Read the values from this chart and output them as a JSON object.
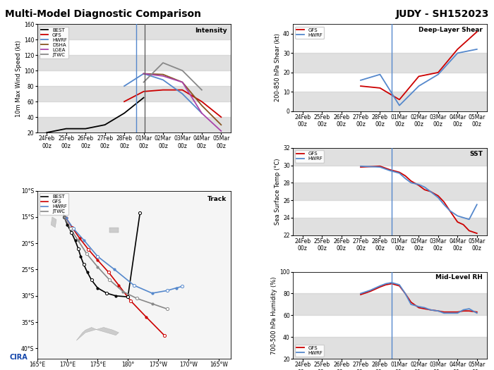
{
  "title_left": "Multi-Model Diagnostic Comparison",
  "title_right": "JUDY - SH152023",
  "bg_color": "#ffffff",
  "gray_band_color": "#cccccc",
  "x_dates": [
    "24Feb\n00z",
    "25Feb\n00z",
    "26Feb\n00z",
    "27Feb\n00z",
    "28Feb\n00z",
    "01Mar\n00z",
    "02Mar\n00z",
    "03Mar\n00z",
    "04Mar\n00z",
    "05Mar\n00z"
  ],
  "x_ticks": [
    0,
    1,
    2,
    3,
    4,
    5,
    6,
    7,
    8,
    9
  ],
  "vline_blue": 4.6,
  "vline_gray": 5.05,
  "intensity": {
    "ylabel": "10m Max Wind Speed (kt)",
    "ylim": [
      20,
      160
    ],
    "yticks": [
      20,
      40,
      60,
      80,
      100,
      120,
      140,
      160
    ],
    "label": "Intensity",
    "BEST": [
      20,
      25,
      25,
      30,
      45,
      65,
      null,
      null,
      null,
      null
    ],
    "GFS": [
      null,
      null,
      null,
      null,
      60,
      73,
      75,
      75,
      60,
      40
    ],
    "HWRF": [
      null,
      null,
      null,
      null,
      80,
      96,
      88,
      70,
      45,
      null
    ],
    "DSHA": [
      null,
      null,
      null,
      null,
      null,
      96,
      95,
      85,
      55,
      30
    ],
    "LGEA": [
      null,
      null,
      null,
      null,
      null,
      96,
      93,
      85,
      45,
      22
    ],
    "JTWC": [
      null,
      null,
      null,
      null,
      null,
      85,
      110,
      100,
      75,
      null
    ],
    "colors": {
      "BEST": "#000000",
      "GFS": "#cc0000",
      "HWRF": "#5588cc",
      "DSHA": "#885522",
      "LGEA": "#aa44aa",
      "JTWC": "#888888"
    }
  },
  "shear": {
    "ylabel": "200-850 hPa Shear (kt)",
    "ylim": [
      0,
      45
    ],
    "yticks": [
      0,
      10,
      20,
      30,
      40
    ],
    "label": "Deep-Layer Shear",
    "GFS": [
      null,
      null,
      null,
      13,
      12,
      6,
      18,
      20,
      32,
      41
    ],
    "HWRF": [
      null,
      null,
      null,
      16,
      19,
      3,
      13,
      19,
      30,
      32
    ],
    "colors": {
      "GFS": "#cc0000",
      "HWRF": "#5588cc"
    }
  },
  "sst": {
    "ylabel": "Sea Surface Temp (°C)",
    "ylim": [
      22,
      32
    ],
    "yticks": [
      22,
      24,
      26,
      28,
      30,
      32
    ],
    "label": "SST",
    "GFS_x": [
      2,
      3,
      4,
      4.5,
      5,
      5.3,
      5.6,
      6,
      6.3,
      6.6,
      7,
      7.3,
      7.6,
      8,
      8.3,
      8.6,
      9
    ],
    "GFS_y": [
      null,
      29.8,
      29.9,
      29.5,
      29.2,
      28.8,
      28.2,
      27.7,
      27.2,
      27.0,
      26.5,
      25.8,
      24.8,
      23.5,
      23.2,
      22.5,
      22.2
    ],
    "HWRF_x": [
      2,
      3,
      4,
      4.5,
      5,
      5.3,
      5.6,
      6,
      6.3,
      6.6,
      7,
      7.3,
      7.6,
      8,
      8.3,
      8.6,
      9
    ],
    "HWRF_y": [
      null,
      29.9,
      29.8,
      29.4,
      29.1,
      28.5,
      28.0,
      27.8,
      27.5,
      27.0,
      26.3,
      25.5,
      24.8,
      24.2,
      24.0,
      23.8,
      25.5
    ],
    "colors": {
      "GFS": "#cc0000",
      "HWRF": "#5588cc"
    }
  },
  "rh": {
    "ylabel": "700-500 hPa Humidity (%)",
    "ylim": [
      20,
      100
    ],
    "yticks": [
      20,
      40,
      60,
      80,
      100
    ],
    "label": "Mid-Level RH",
    "GFS_x": [
      2,
      3,
      3.5,
      4,
      4.3,
      4.6,
      5,
      5.3,
      5.6,
      6,
      6.3,
      6.6,
      7,
      7.3,
      7.6,
      8,
      8.3,
      8.6,
      9
    ],
    "GFS_y": [
      null,
      79,
      82,
      86,
      88,
      89,
      87,
      80,
      72,
      67,
      66,
      65,
      64,
      63,
      63,
      63,
      64,
      64,
      63
    ],
    "HWRF_x": [
      2,
      3,
      3.5,
      4,
      4.3,
      4.6,
      5,
      5.3,
      5.6,
      6,
      6.3,
      6.6,
      7,
      7.3,
      7.6,
      8,
      8.3,
      8.6,
      9
    ],
    "HWRF_y": [
      null,
      80,
      83,
      87,
      89,
      90,
      88,
      80,
      70,
      68,
      67,
      65,
      64,
      62,
      62,
      62,
      65,
      66,
      62
    ],
    "colors": {
      "GFS": "#cc0000",
      "HWRF": "#5588cc"
    }
  },
  "track": {
    "label": "Track",
    "xlim": [
      165,
      197
    ],
    "ylim": [
      -42,
      -10
    ],
    "xticks": [
      165,
      170,
      175,
      180,
      185,
      190,
      195
    ],
    "xlabels": [
      "165°E",
      "170°E",
      "175°E",
      "180°",
      "175°W",
      "170°W",
      "165°W"
    ],
    "yticks": [
      -10,
      -15,
      -20,
      -25,
      -30,
      -35,
      -40
    ],
    "ylabels": [
      "10°S",
      "15°S",
      "20°S",
      "25°S",
      "30°S",
      "35°S",
      "40°S"
    ],
    "BEST_lon": [
      168.5,
      169.0,
      169.3,
      169.5,
      170.0,
      170.7,
      171.3,
      171.8,
      172.2,
      172.7,
      173.3,
      174.0,
      175.0,
      176.5,
      178.0,
      180.0,
      182.0
    ],
    "BEST_lat": [
      -12.5,
      -13.5,
      -14.0,
      -15.0,
      -16.5,
      -18.0,
      -19.5,
      -21.0,
      -22.5,
      -24.0,
      -25.5,
      -27.0,
      -28.5,
      -29.5,
      -30.0,
      -30.2,
      -14.2
    ],
    "BEST_filled": [
      true,
      false,
      true,
      false,
      true,
      false,
      true,
      false,
      true,
      false,
      true,
      false,
      true,
      false,
      true,
      false,
      false
    ],
    "GFS_lon": [
      169.8,
      170.8,
      172.0,
      173.5,
      175.0,
      176.8,
      178.5,
      180.5,
      183.0,
      186.0
    ],
    "GFS_lat": [
      -15.2,
      -17.0,
      -19.0,
      -21.2,
      -23.2,
      -25.5,
      -28.0,
      -31.0,
      -34.0,
      -37.5
    ],
    "GFS_filled": [
      true,
      false,
      true,
      false,
      true,
      false,
      true,
      false,
      true,
      false
    ],
    "HWRF_lon": [
      169.8,
      171.0,
      172.8,
      175.0,
      177.8,
      181.0,
      184.0,
      186.5,
      188.0,
      189.0
    ],
    "HWRF_lat": [
      -15.2,
      -17.2,
      -19.5,
      -22.5,
      -25.0,
      -28.0,
      -29.5,
      -29.0,
      -28.5,
      -28.2
    ],
    "HWRF_filled": [
      true,
      false,
      true,
      false,
      true,
      false,
      true,
      false,
      true,
      false
    ],
    "JTWC_lon": [
      169.5,
      170.5,
      171.8,
      173.2,
      175.0,
      177.0,
      179.2,
      181.5,
      184.0,
      186.5
    ],
    "JTWC_lat": [
      -15.0,
      -17.2,
      -19.5,
      -22.0,
      -24.5,
      -27.0,
      -29.2,
      -30.5,
      -31.5,
      -32.5
    ],
    "JTWC_filled": [
      true,
      false,
      true,
      false,
      true,
      false,
      true,
      false,
      true,
      false
    ],
    "colors": {
      "BEST": "#000000",
      "GFS": "#cc0000",
      "HWRF": "#5588cc",
      "JTWC": "#888888"
    },
    "nz_north_lon": [
      172.5,
      173.0,
      174.0,
      175.0,
      176.5,
      178.0,
      178.5,
      177.5,
      176.0,
      174.5,
      173.0,
      172.0,
      171.5,
      172.5
    ],
    "nz_north_lat": [
      -37.0,
      -36.5,
      -36.0,
      -36.5,
      -37.0,
      -37.5,
      -37.0,
      -36.5,
      -36.0,
      -36.5,
      -37.0,
      -38.0,
      -38.5,
      -37.0
    ],
    "nz_south_lon": [
      166.5,
      167.5,
      168.5,
      169.5,
      170.5,
      171.5,
      172.5,
      173.0,
      172.0,
      170.5,
      169.0,
      167.5,
      166.5
    ],
    "nz_south_lat": [
      -45.5,
      -45.0,
      -44.0,
      -43.0,
      -42.5,
      -43.0,
      -43.5,
      -44.0,
      -45.5,
      -46.0,
      -46.5,
      -46.0,
      -45.5
    ],
    "fiji_lon": [
      177.0,
      178.5,
      178.5,
      177.0,
      177.0
    ],
    "fiji_lat": [
      -17.0,
      -17.0,
      -18.0,
      -18.0,
      -17.0
    ],
    "vanuatu_lon": [
      167.5,
      168.2,
      168.0,
      167.3,
      167.5
    ],
    "vanuatu_lat": [
      -15.0,
      -15.5,
      -17.0,
      -16.5,
      -15.0
    ]
  }
}
